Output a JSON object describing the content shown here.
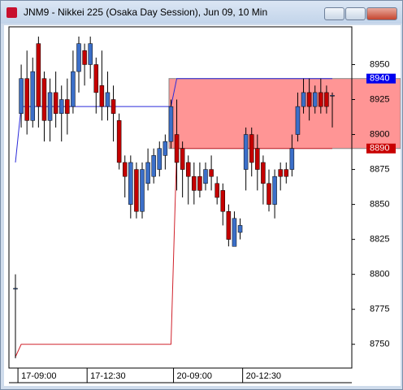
{
  "chart_data": {
    "type": "candlestick",
    "title": "JNM9 - Nikkei 225 (Osaka Day Session), Jun 09, 10 Min",
    "categories": [
      null,
      "17-09:00",
      null,
      null,
      null,
      null,
      null,
      null,
      null,
      null,
      null,
      null,
      null,
      "17-12:30",
      null,
      null,
      null,
      null,
      null,
      null,
      null,
      null,
      null,
      null,
      null,
      null,
      null,
      null,
      "20-09:00",
      null,
      null,
      null,
      null,
      null,
      null,
      null,
      null,
      null,
      null,
      null,
      "20-12:30",
      null,
      null,
      null,
      null,
      null,
      null,
      null,
      null,
      null,
      null,
      null,
      null,
      null,
      null,
      null
    ],
    "open": [
      8790,
      8915,
      8940,
      8910,
      8965,
      8940,
      8910,
      8930,
      8915,
      8925,
      8920,
      8945,
      8960,
      8950,
      8950,
      8935,
      8920,
      8925,
      8910,
      8880,
      8850,
      8875,
      8845,
      8865,
      8870,
      8875,
      8885,
      8895,
      8900,
      8890,
      8880,
      8870,
      8870,
      8865,
      8875,
      8865,
      8860,
      8845,
      8820,
      8830,
      8875,
      8900,
      8890,
      8880,
      8865,
      8850,
      8875,
      8875,
      8875,
      8900,
      8920,
      8930,
      8920,
      8930,
      8930,
      8928
    ],
    "high": [
      8800,
      8950,
      8960,
      8955,
      8970,
      8945,
      8940,
      8945,
      8935,
      8940,
      8960,
      8970,
      8965,
      8970,
      8955,
      8960,
      8945,
      8935,
      8915,
      8885,
      8885,
      8880,
      8880,
      8890,
      8890,
      8895,
      8900,
      8925,
      8925,
      8895,
      8885,
      8880,
      8880,
      8880,
      8885,
      8870,
      8865,
      8850,
      8845,
      8840,
      8905,
      8905,
      8900,
      8885,
      8875,
      8875,
      8880,
      8880,
      8900,
      8930,
      8940,
      8940,
      8935,
      8940,
      8935,
      8930
    ],
    "low": [
      8740,
      8905,
      8900,
      8905,
      8905,
      8895,
      8895,
      8905,
      8895,
      8900,
      8915,
      8930,
      8935,
      8940,
      8915,
      8910,
      8910,
      8895,
      8875,
      8855,
      8840,
      8840,
      8840,
      8860,
      8865,
      8870,
      8875,
      8890,
      8860,
      8855,
      8850,
      8850,
      8855,
      8860,
      8860,
      8850,
      8835,
      8820,
      8820,
      8825,
      8860,
      8870,
      8860,
      8850,
      8845,
      8840,
      8860,
      8865,
      8870,
      8895,
      8915,
      8910,
      8915,
      8915,
      8915,
      8905
    ],
    "close": [
      8790,
      8940,
      8910,
      8945,
      8920,
      8910,
      8930,
      8915,
      8925,
      8915,
      8945,
      8965,
      8950,
      8965,
      8930,
      8920,
      8930,
      8915,
      8880,
      8870,
      8880,
      8845,
      8875,
      8880,
      8885,
      8890,
      8895,
      8920,
      8880,
      8875,
      8870,
      8860,
      8860,
      8875,
      8870,
      8855,
      8845,
      8825,
      8840,
      8835,
      8900,
      8880,
      8875,
      8865,
      8850,
      8870,
      8870,
      8870,
      8890,
      8920,
      8930,
      8920,
      8930,
      8920,
      8920,
      8928
    ],
    "up_color": "#3b6fc9",
    "down_color": "#c40000",
    "lines": [
      {
        "color": "#2b2bd9",
        "values": [
          8880,
          8920,
          8920,
          8920,
          8920,
          8920,
          8920,
          8920,
          8920,
          8920,
          8920,
          8920,
          8920,
          8920,
          8920,
          8920,
          8920,
          8920,
          8920,
          8920,
          8920,
          8920,
          8920,
          8920,
          8920,
          8920,
          8920,
          8920,
          8940,
          8940,
          8940,
          8940,
          8940,
          8940,
          8940,
          8940,
          8940,
          8940,
          8940,
          8940,
          8940,
          8940,
          8940,
          8940,
          8940,
          8940,
          8940,
          8940,
          8940,
          8940,
          8940,
          8940,
          8940,
          8940,
          8940,
          8940
        ]
      },
      {
        "color": "#d0202a",
        "values": [
          8741,
          8750,
          8750,
          8750,
          8750,
          8750,
          8750,
          8750,
          8750,
          8750,
          8750,
          8750,
          8750,
          8750,
          8750,
          8750,
          8750,
          8750,
          8750,
          8750,
          8750,
          8750,
          8750,
          8750,
          8750,
          8750,
          8750,
          8750,
          8890,
          8890,
          8890,
          8890,
          8890,
          8890,
          8890,
          8890,
          8890,
          8890,
          8890,
          8890,
          8890,
          8890,
          8890,
          8890,
          8890,
          8890,
          8890,
          8890,
          8890,
          8890,
          8890,
          8890,
          8890,
          8890,
          8890,
          8890
        ]
      }
    ],
    "zone": {
      "low": 8890,
      "high": 8940,
      "color": "#ff7a7a",
      "high_color": "#0000ee",
      "low_color": "#c80000"
    },
    "ylim": [
      8733,
      8977
    ],
    "yticks": [
      8750,
      8775,
      8800,
      8825,
      8850,
      8875,
      8900,
      8925,
      8950
    ],
    "grid": false
  }
}
